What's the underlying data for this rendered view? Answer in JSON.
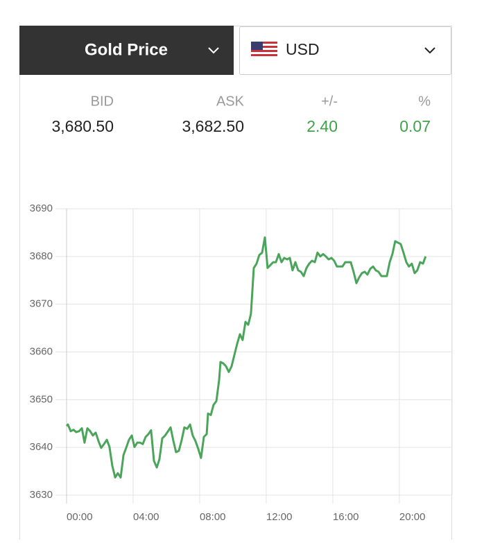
{
  "header": {
    "title": "Gold Price",
    "currency": "USD"
  },
  "quote": {
    "labels": [
      "BID",
      "ASK",
      "+/-",
      "%"
    ],
    "values": [
      "3,680.50",
      "3,682.50",
      "2.40",
      "0.07"
    ]
  },
  "chart_data": {
    "type": "line",
    "color": "#4aa55a",
    "grid": true,
    "xlim": [
      0,
      23.17
    ],
    "ylim": [
      3630,
      3690
    ],
    "yticks": [
      3630,
      3640,
      3650,
      3660,
      3670,
      3680,
      3690
    ],
    "xticks": [
      {
        "value": 0,
        "label": "00:00"
      },
      {
        "value": 4,
        "label": "04:00"
      },
      {
        "value": 8,
        "label": "08:00"
      },
      {
        "value": 12,
        "label": "12:00"
      },
      {
        "value": 16,
        "label": "16:00"
      },
      {
        "value": 20,
        "label": "20:00"
      }
    ],
    "x": [
      0,
      0.08,
      0.25,
      0.42,
      0.58,
      0.75,
      0.92,
      1.08,
      1.25,
      1.42,
      1.58,
      1.75,
      1.92,
      2.08,
      2.25,
      2.42,
      2.58,
      2.75,
      2.92,
      3.08,
      3.25,
      3.42,
      3.58,
      3.75,
      3.92,
      4.08,
      4.25,
      4.42,
      4.58,
      4.75,
      4.92,
      5.08,
      5.25,
      5.42,
      5.58,
      5.75,
      5.92,
      6.08,
      6.25,
      6.42,
      6.58,
      6.75,
      6.92,
      7.08,
      7.25,
      7.42,
      7.58,
      7.75,
      7.92,
      8.08,
      8.25,
      8.42,
      8.5,
      8.67,
      8.83,
      9,
      9.17,
      9.25,
      9.42,
      9.58,
      9.75,
      9.92,
      10.08,
      10.25,
      10.42,
      10.58,
      10.75,
      10.92,
      11.08,
      11.25,
      11.42,
      11.58,
      11.75,
      11.92,
      12.08,
      12.25,
      12.42,
      12.58,
      12.75,
      12.92,
      13.08,
      13.25,
      13.42,
      13.58,
      13.75,
      13.92,
      14.08,
      14.25,
      14.42,
      14.58,
      14.75,
      14.92,
      15.08,
      15.25,
      15.42,
      15.58,
      15.75,
      15.92,
      16.08,
      16.25,
      16.42,
      16.58,
      16.75,
      16.92,
      17.08,
      17.25,
      17.42,
      17.58,
      17.75,
      17.92,
      18.08,
      18.25,
      18.42,
      18.58,
      18.75,
      18.92,
      19.08,
      19.25,
      19.42,
      19.58,
      19.75,
      19.92,
      20.08,
      20.25,
      20.42,
      20.58,
      20.75,
      20.92,
      21.08,
      21.25,
      21.42,
      21.58
    ],
    "values": [
      3644.5,
      3644.8,
      3643.4,
      3643.7,
      3643.2,
      3643.4,
      3644,
      3641,
      3644,
      3643.4,
      3642.5,
      3643.1,
      3641.3,
      3639.9,
      3640.7,
      3641.6,
      3640.1,
      3636.1,
      3633.7,
      3634.6,
      3633.7,
      3638.4,
      3639.9,
      3641.6,
      3642.5,
      3640.1,
      3641,
      3641,
      3640.7,
      3642.2,
      3642.8,
      3643.6,
      3637.2,
      3635.8,
      3637.5,
      3641.9,
      3642.5,
      3643.3,
      3644.2,
      3641.3,
      3639,
      3639.3,
      3641.6,
      3644.2,
      3643.9,
      3644.8,
      3642.5,
      3641.3,
      3639.6,
      3637.8,
      3642.2,
      3642.8,
      3647.1,
      3646.8,
      3648.9,
      3649.7,
      3654.1,
      3657.9,
      3657.6,
      3657,
      3655.8,
      3657,
      3659.3,
      3661.7,
      3663.7,
      3662.5,
      3666.3,
      3665.7,
      3668,
      3677.6,
      3678.5,
      3680.3,
      3680.8,
      3684,
      3677.6,
      3678.2,
      3678.8,
      3678.8,
      3680.5,
      3678.8,
      3679.7,
      3679.4,
      3679.7,
      3677.1,
      3678.8,
      3677.1,
      3676.8,
      3675.9,
      3677.6,
      3678.5,
      3679.1,
      3678.8,
      3680.8,
      3680,
      3680.5,
      3680,
      3679.4,
      3679.7,
      3679.1,
      3677.9,
      3677.9,
      3677.9,
      3678.8,
      3678.8,
      3678.8,
      3676.8,
      3674.4,
      3675.6,
      3676.5,
      3676.8,
      3676.2,
      3677.4,
      3677.9,
      3677.1,
      3676.8,
      3675.9,
      3675.9,
      3675.9,
      3678.8,
      3680.5,
      3683.2,
      3682.9,
      3682.6,
      3680.8,
      3678.8,
      3677.9,
      3678.5,
      3676.5,
      3677.1,
      3678.8,
      3678.5,
      3680
    ]
  }
}
